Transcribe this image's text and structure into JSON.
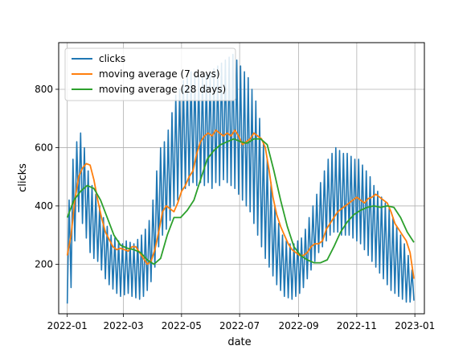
{
  "chart_data": {
    "type": "line",
    "xlabel": "date",
    "ylabel": "clicks",
    "x_range": [
      "2021-12-23",
      "2023-01-11"
    ],
    "ylim": [
      30,
      960
    ],
    "grid": true,
    "legend_position": "top-left",
    "x_ticks": [
      {
        "date": "2022-01-01",
        "label": "2022-01"
      },
      {
        "date": "2022-03-01",
        "label": "2022-03"
      },
      {
        "date": "2022-05-01",
        "label": "2022-05"
      },
      {
        "date": "2022-07-01",
        "label": "2022-07"
      },
      {
        "date": "2022-09-01",
        "label": "2022-09"
      },
      {
        "date": "2022-11-01",
        "label": "2022-11"
      },
      {
        "date": "2023-01-01",
        "label": "2023-01"
      }
    ],
    "y_ticks": [
      200,
      400,
      600,
      800
    ],
    "series": [
      {
        "name": "clicks",
        "color": "#1f77b4",
        "width": 1.6,
        "x": [
          "2022-01-01",
          "2022-01-03",
          "2022-01-05",
          "2022-01-07",
          "2022-01-09",
          "2022-01-11",
          "2022-01-13",
          "2022-01-15",
          "2022-01-17",
          "2022-01-19",
          "2022-01-21",
          "2022-01-23",
          "2022-01-25",
          "2022-01-27",
          "2022-01-29",
          "2022-01-31",
          "2022-02-02",
          "2022-02-04",
          "2022-02-06",
          "2022-02-08",
          "2022-02-10",
          "2022-02-12",
          "2022-02-14",
          "2022-02-16",
          "2022-02-18",
          "2022-02-20",
          "2022-02-22",
          "2022-02-24",
          "2022-02-26",
          "2022-02-28",
          "2022-03-02",
          "2022-03-04",
          "2022-03-06",
          "2022-03-08",
          "2022-03-10",
          "2022-03-12",
          "2022-03-14",
          "2022-03-16",
          "2022-03-18",
          "2022-03-20",
          "2022-03-22",
          "2022-03-24",
          "2022-03-26",
          "2022-03-28",
          "2022-03-30",
          "2022-04-01",
          "2022-04-03",
          "2022-04-05",
          "2022-04-07",
          "2022-04-09",
          "2022-04-11",
          "2022-04-13",
          "2022-04-15",
          "2022-04-17",
          "2022-04-19",
          "2022-04-21",
          "2022-04-23",
          "2022-04-25",
          "2022-04-27",
          "2022-04-29",
          "2022-05-01",
          "2022-05-03",
          "2022-05-05",
          "2022-05-07",
          "2022-05-09",
          "2022-05-11",
          "2022-05-13",
          "2022-05-15",
          "2022-05-17",
          "2022-05-19",
          "2022-05-21",
          "2022-05-23",
          "2022-05-25",
          "2022-05-27",
          "2022-05-29",
          "2022-05-31",
          "2022-06-02",
          "2022-06-04",
          "2022-06-06",
          "2022-06-08",
          "2022-06-10",
          "2022-06-12",
          "2022-06-14",
          "2022-06-16",
          "2022-06-18",
          "2022-06-20",
          "2022-06-22",
          "2022-06-24",
          "2022-06-26",
          "2022-06-28",
          "2022-06-30",
          "2022-07-02",
          "2022-07-04",
          "2022-07-06",
          "2022-07-08",
          "2022-07-10",
          "2022-07-12",
          "2022-07-14",
          "2022-07-16",
          "2022-07-18",
          "2022-07-20",
          "2022-07-22",
          "2022-07-24",
          "2022-07-26",
          "2022-07-28",
          "2022-07-30",
          "2022-08-01",
          "2022-08-03",
          "2022-08-05",
          "2022-08-07",
          "2022-08-09",
          "2022-08-11",
          "2022-08-13",
          "2022-08-15",
          "2022-08-17",
          "2022-08-19",
          "2022-08-21",
          "2022-08-23",
          "2022-08-25",
          "2022-08-27",
          "2022-08-29",
          "2022-08-31",
          "2022-09-02",
          "2022-09-04",
          "2022-09-06",
          "2022-09-08",
          "2022-09-10",
          "2022-09-12",
          "2022-09-14",
          "2022-09-16",
          "2022-09-18",
          "2022-09-20",
          "2022-09-22",
          "2022-09-24",
          "2022-09-26",
          "2022-09-28",
          "2022-09-30",
          "2022-10-02",
          "2022-10-04",
          "2022-10-06",
          "2022-10-08",
          "2022-10-10",
          "2022-10-12",
          "2022-10-14",
          "2022-10-16",
          "2022-10-18",
          "2022-10-20",
          "2022-10-22",
          "2022-10-24",
          "2022-10-26",
          "2022-10-28",
          "2022-10-30",
          "2022-11-01",
          "2022-11-03",
          "2022-11-05",
          "2022-11-07",
          "2022-11-09",
          "2022-11-11",
          "2022-11-13",
          "2022-11-15",
          "2022-11-17",
          "2022-11-19",
          "2022-11-21",
          "2022-11-23",
          "2022-11-25",
          "2022-11-27",
          "2022-11-29",
          "2022-12-01",
          "2022-12-03",
          "2022-12-05",
          "2022-12-07",
          "2022-12-09",
          "2022-12-11",
          "2022-12-13",
          "2022-12-15",
          "2022-12-17",
          "2022-12-19",
          "2022-12-21",
          "2022-12-23",
          "2022-12-25",
          "2022-12-27",
          "2022-12-29",
          "2022-12-31"
        ],
        "y": [
          65,
          420,
          120,
          560,
          280,
          620,
          380,
          650,
          340,
          600,
          290,
          520,
          240,
          470,
          220,
          440,
          210,
          400,
          180,
          360,
          150,
          330,
          130,
          300,
          115,
          290,
          100,
          280,
          90,
          270,
          95,
          280,
          100,
          275,
          90,
          270,
          85,
          285,
          80,
          300,
          90,
          320,
          110,
          350,
          140,
          420,
          190,
          520,
          260,
          600,
          300,
          620,
          320,
          660,
          350,
          720,
          400,
          780,
          420,
          800,
          450,
          830,
          460,
          840,
          470,
          860,
          480,
          860,
          470,
          850,
          480,
          840,
          470,
          850,
          480,
          860,
          460,
          870,
          480,
          880,
          470,
          890,
          490,
          900,
          480,
          910,
          470,
          920,
          460,
          900,
          440,
          880,
          420,
          860,
          400,
          840,
          380,
          800,
          340,
          760,
          300,
          700,
          260,
          620,
          220,
          560,
          190,
          480,
          160,
          400,
          130,
          340,
          110,
          300,
          90,
          280,
          85,
          270,
          80,
          270,
          90,
          280,
          100,
          290,
          120,
          320,
          150,
          360,
          180,
          400,
          210,
          440,
          240,
          480,
          260,
          520,
          280,
          560,
          300,
          580,
          310,
          600,
          310,
          590,
          300,
          580,
          300,
          580,
          300,
          570,
          290,
          560,
          280,
          560,
          270,
          540,
          250,
          520,
          230,
          500,
          210,
          470,
          190,
          450,
          170,
          430,
          150,
          410,
          130,
          390,
          110,
          360,
          100,
          330,
          90,
          300,
          80,
          270,
          70,
          230,
          70,
          180,
          75
        ]
      },
      {
        "name": "moving average (7 days)",
        "color": "#ff7f0e",
        "width": 1.8,
        "x": [
          "2022-01-01",
          "2022-01-05",
          "2022-01-09",
          "2022-01-13",
          "2022-01-17",
          "2022-01-21",
          "2022-01-25",
          "2022-01-29",
          "2022-02-02",
          "2022-02-06",
          "2022-02-10",
          "2022-02-14",
          "2022-02-18",
          "2022-02-22",
          "2022-02-26",
          "2022-03-02",
          "2022-03-06",
          "2022-03-10",
          "2022-03-14",
          "2022-03-18",
          "2022-03-22",
          "2022-03-26",
          "2022-03-30",
          "2022-04-03",
          "2022-04-07",
          "2022-04-11",
          "2022-04-15",
          "2022-04-19",
          "2022-04-23",
          "2022-04-27",
          "2022-05-01",
          "2022-05-05",
          "2022-05-09",
          "2022-05-13",
          "2022-05-17",
          "2022-05-21",
          "2022-05-25",
          "2022-05-29",
          "2022-06-02",
          "2022-06-06",
          "2022-06-10",
          "2022-06-14",
          "2022-06-18",
          "2022-06-22",
          "2022-06-26",
          "2022-06-30",
          "2022-07-04",
          "2022-07-08",
          "2022-07-12",
          "2022-07-16",
          "2022-07-20",
          "2022-07-24",
          "2022-07-28",
          "2022-08-01",
          "2022-08-05",
          "2022-08-09",
          "2022-08-13",
          "2022-08-17",
          "2022-08-21",
          "2022-08-25",
          "2022-08-29",
          "2022-09-02",
          "2022-09-06",
          "2022-09-10",
          "2022-09-14",
          "2022-09-18",
          "2022-09-22",
          "2022-09-26",
          "2022-09-30",
          "2022-10-04",
          "2022-10-08",
          "2022-10-12",
          "2022-10-16",
          "2022-10-20",
          "2022-10-24",
          "2022-10-28",
          "2022-11-01",
          "2022-11-05",
          "2022-11-09",
          "2022-11-13",
          "2022-11-17",
          "2022-11-21",
          "2022-11-25",
          "2022-11-29",
          "2022-12-03",
          "2022-12-07",
          "2022-12-11",
          "2022-12-15",
          "2022-12-19",
          "2022-12-23",
          "2022-12-27",
          "2022-12-31"
        ],
        "y": [
          230,
          300,
          420,
          500,
          530,
          545,
          540,
          490,
          420,
          360,
          310,
          285,
          260,
          250,
          255,
          250,
          245,
          260,
          260,
          240,
          220,
          200,
          210,
          250,
          310,
          380,
          400,
          390,
          380,
          410,
          450,
          470,
          500,
          520,
          580,
          620,
          640,
          650,
          640,
          660,
          650,
          640,
          650,
          640,
          660,
          640,
          610,
          620,
          630,
          650,
          640,
          630,
          600,
          520,
          430,
          370,
          330,
          300,
          270,
          250,
          240,
          230,
          230,
          240,
          260,
          270,
          270,
          280,
          320,
          340,
          360,
          380,
          390,
          400,
          410,
          420,
          430,
          420,
          410,
          425,
          430,
          440,
          430,
          420,
          410,
          380,
          340,
          320,
          300,
          280,
          240,
          150
        ]
      },
      {
        "name": "moving average (28 days)",
        "color": "#2ca02c",
        "width": 1.8,
        "x": [
          "2022-01-01",
          "2022-01-08",
          "2022-01-15",
          "2022-01-22",
          "2022-01-29",
          "2022-02-05",
          "2022-02-12",
          "2022-02-19",
          "2022-02-26",
          "2022-03-05",
          "2022-03-12",
          "2022-03-19",
          "2022-03-26",
          "2022-04-02",
          "2022-04-09",
          "2022-04-16",
          "2022-04-23",
          "2022-04-30",
          "2022-05-07",
          "2022-05-14",
          "2022-05-21",
          "2022-05-28",
          "2022-06-04",
          "2022-06-11",
          "2022-06-18",
          "2022-06-25",
          "2022-07-02",
          "2022-07-09",
          "2022-07-16",
          "2022-07-23",
          "2022-07-30",
          "2022-08-06",
          "2022-08-13",
          "2022-08-20",
          "2022-08-27",
          "2022-09-03",
          "2022-09-10",
          "2022-09-17",
          "2022-09-24",
          "2022-10-01",
          "2022-10-08",
          "2022-10-15",
          "2022-10-22",
          "2022-10-29",
          "2022-11-05",
          "2022-11-12",
          "2022-11-19",
          "2022-11-26",
          "2022-12-03",
          "2022-12-10",
          "2022-12-17",
          "2022-12-24",
          "2022-12-31"
        ],
        "y": [
          360,
          420,
          450,
          470,
          460,
          420,
          360,
          300,
          265,
          255,
          250,
          240,
          215,
          200,
          220,
          300,
          360,
          360,
          385,
          420,
          490,
          560,
          590,
          610,
          620,
          630,
          620,
          615,
          630,
          630,
          610,
          520,
          420,
          330,
          260,
          230,
          215,
          205,
          205,
          215,
          260,
          310,
          345,
          370,
          385,
          395,
          400,
          395,
          400,
          395,
          360,
          310,
          275
        ]
      }
    ]
  }
}
